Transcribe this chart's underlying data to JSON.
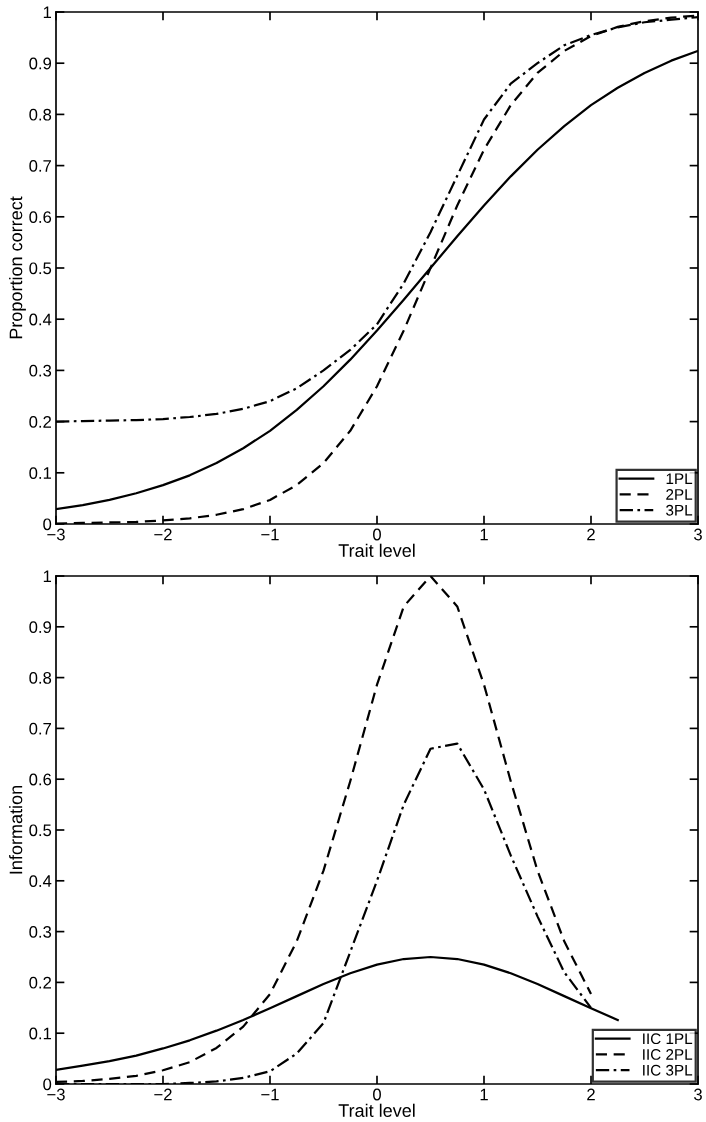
{
  "chart_data": [
    {
      "type": "line",
      "xlabel": "Trait level",
      "ylabel": "Proportion correct",
      "x": [
        -3,
        -2.75,
        -2.5,
        -2.25,
        -2,
        -1.75,
        -1.5,
        -1.25,
        -1,
        -0.75,
        -0.5,
        -0.25,
        0,
        0.25,
        0.5,
        0.75,
        1,
        1.25,
        1.5,
        1.75,
        2,
        2.25,
        2.5,
        2.75,
        3
      ],
      "series": [
        {
          "name": "1PL",
          "color": "#000000",
          "line_style": "solid",
          "values": [
            0.029,
            0.037,
            0.047,
            0.06,
            0.076,
            0.095,
            0.119,
            0.148,
            0.182,
            0.223,
            0.269,
            0.321,
            0.378,
            0.438,
            0.5,
            0.562,
            0.622,
            0.679,
            0.731,
            0.777,
            0.818,
            0.852,
            0.881,
            0.905,
            0.924
          ]
        },
        {
          "name": "2PL",
          "color": "#000000",
          "line_style": "dashed",
          "values": [
            0.001,
            0.002,
            0.003,
            0.004,
            0.007,
            0.011,
            0.018,
            0.029,
            0.047,
            0.076,
            0.119,
            0.182,
            0.269,
            0.378,
            0.5,
            0.622,
            0.731,
            0.818,
            0.881,
            0.924,
            0.953,
            0.971,
            0.982,
            0.989,
            0.993
          ]
        },
        {
          "name": "3PL",
          "color": "#000000",
          "line_style": "dashdot",
          "values": [
            0.2,
            0.201,
            0.202,
            0.203,
            0.205,
            0.209,
            0.215,
            0.225,
            0.24,
            0.265,
            0.3,
            0.34,
            0.39,
            0.47,
            0.57,
            0.68,
            0.79,
            0.86,
            0.9,
            0.935,
            0.955,
            0.97,
            0.98,
            0.985,
            0.99
          ]
        }
      ],
      "xlim": [
        -3,
        3
      ],
      "ylim": [
        0,
        1
      ],
      "xticks": [
        {
          "value": -3,
          "label": "−3"
        },
        {
          "value": -2,
          "label": "−2"
        },
        {
          "value": -1,
          "label": "−1"
        },
        0,
        1,
        2,
        3
      ],
      "yticks": [
        0,
        0.1,
        0.2,
        0.3,
        0.4,
        0.5,
        0.6,
        0.7,
        0.8,
        0.9,
        1
      ],
      "legend": "bottom right",
      "grid": false
    },
    {
      "type": "line",
      "xlabel": "Trait level",
      "ylabel": "Information",
      "x": [
        -3,
        -2.75,
        -2.5,
        -2.25,
        -2,
        -1.75,
        -1.5,
        -1.25,
        -1,
        -0.75,
        -0.5,
        -0.25,
        0,
        0.25,
        0.5,
        0.75,
        1,
        1.25,
        1.5,
        1.75,
        2,
        2.25
      ],
      "series": [
        {
          "name": "IIC 1PL",
          "color": "#000000",
          "line_style": "solid",
          "values": [
            0.028,
            0.036,
            0.045,
            0.056,
            0.07,
            0.086,
            0.105,
            0.126,
            0.149,
            0.173,
            0.197,
            0.218,
            0.235,
            0.246,
            0.25,
            0.246,
            0.235,
            0.218,
            0.197,
            0.173,
            0.149,
            0.126
          ]
        },
        {
          "name": "IIC 2PL",
          "color": "#000000",
          "line_style": "dashed",
          "values": [
            0.004,
            0.006,
            0.01,
            0.016,
            0.027,
            0.043,
            0.071,
            0.113,
            0.177,
            0.281,
            0.42,
            0.596,
            0.786,
            0.94,
            1.0,
            0.94,
            0.786,
            0.596,
            0.42,
            0.281,
            0.177,
            null
          ]
        },
        {
          "name": "IIC 3PL",
          "color": "#000000",
          "line_style": "dashdot",
          "values": [
            0,
            0,
            0,
            0,
            0,
            0.002,
            0.005,
            0.012,
            0.025,
            0.06,
            0.12,
            0.26,
            0.4,
            0.55,
            0.66,
            0.67,
            0.58,
            0.45,
            0.33,
            0.22,
            0.15,
            null
          ]
        }
      ],
      "xlim": [
        -3,
        3
      ],
      "ylim": [
        0,
        1
      ],
      "xticks": [
        {
          "value": -3,
          "label": "−3"
        },
        {
          "value": -2,
          "label": "−2"
        },
        {
          "value": -1,
          "label": "−1"
        },
        0,
        1,
        2,
        3
      ],
      "yticks": [
        0,
        0.1,
        0.2,
        0.3,
        0.4,
        0.5,
        0.6,
        0.7,
        0.8,
        0.9,
        1
      ],
      "legend": "bottom right",
      "grid": false
    }
  ]
}
